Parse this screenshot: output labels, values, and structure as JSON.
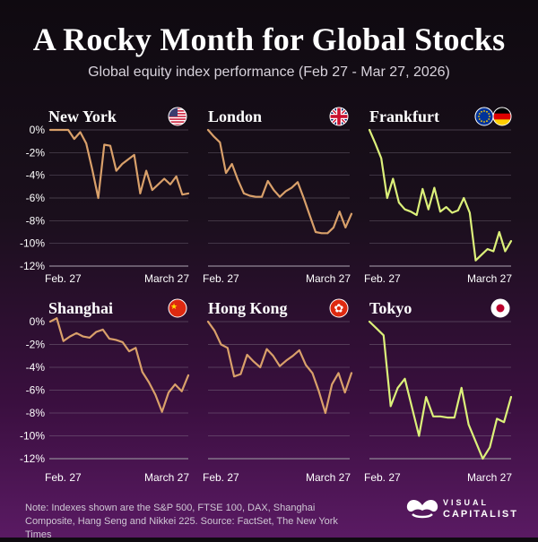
{
  "header": {
    "title": "A Rocky Month for Global Stocks",
    "subtitle": "Global equity index performance (Feb 27 - Mar 27, 2026)"
  },
  "footer": {
    "note": "Note: Indexes shown are the S&P 500, FTSE 100, DAX, Shanghai Composite, Hang Seng and Nikkei 225.  Source: FactSet, The New York Times",
    "logo_line1": "VISUAL",
    "logo_line2": "CAPITALIST"
  },
  "colors": {
    "orange": "#d9a06a",
    "lime": "#dcf07a",
    "grid": "#8a7f8f"
  },
  "chart_data": [
    {
      "type": "line",
      "title": "New York",
      "flag": "us-flag-icon",
      "color": "orange",
      "ylim": [
        -12,
        0
      ],
      "yticks": [
        "0%",
        "-2%",
        "-4%",
        "-6%",
        "-8%",
        "-10%",
        "-12%"
      ],
      "x_start_label": "Feb. 27",
      "x_end_label": "March 27",
      "values": [
        0,
        0,
        0,
        0,
        -0.8,
        -0.2,
        -1.2,
        -3.5,
        -6.0,
        -1.3,
        -1.4,
        -3.6,
        -3.0,
        -2.6,
        -2.2,
        -5.6,
        -3.6,
        -5.3,
        -4.8,
        -4.3,
        -4.8,
        -4.1,
        -5.7,
        -5.6
      ]
    },
    {
      "type": "line",
      "title": "London",
      "flag": "uk-flag-icon",
      "color": "orange",
      "ylim": [
        -12,
        0
      ],
      "yticks": [
        "0%",
        "-2%",
        "-4%",
        "-6%",
        "-8%",
        "-10%",
        "-12%"
      ],
      "x_start_label": "Feb. 27",
      "x_end_label": "March 27",
      "values": [
        0,
        -0.6,
        -1.1,
        -3.8,
        -3.0,
        -4.4,
        -5.6,
        -5.8,
        -5.9,
        -5.9,
        -4.5,
        -5.3,
        -5.9,
        -5.4,
        -5.1,
        -4.6,
        -6.0,
        -7.5,
        -9.0,
        -9.1,
        -9.1,
        -8.6,
        -7.2,
        -8.6,
        -7.4
      ]
    },
    {
      "type": "line",
      "title": "Frankfurt",
      "flag": "eu-de-flag-icon",
      "color": "lime",
      "ylim": [
        -12,
        0
      ],
      "yticks": [
        "0%",
        "-2%",
        "-4%",
        "-6%",
        "-8%",
        "-10%",
        "-12%"
      ],
      "x_start_label": "Feb. 27",
      "x_end_label": "March 27",
      "values": [
        0,
        -1.2,
        -2.5,
        -6.0,
        -4.3,
        -6.4,
        -7.0,
        -7.2,
        -7.5,
        -5.2,
        -7.0,
        -5.1,
        -7.2,
        -6.8,
        -7.3,
        -7.1,
        -6.0,
        -7.3,
        -11.5,
        -11.0,
        -10.5,
        -10.7,
        -9.0,
        -10.7,
        -9.8
      ]
    },
    {
      "type": "line",
      "title": "Shanghai",
      "flag": "china-flag-icon",
      "color": "orange",
      "ylim": [
        -12,
        0
      ],
      "yticks": [
        "0%",
        "-2%",
        "-4%",
        "-6%",
        "-8%",
        "-10%",
        "-12%"
      ],
      "x_start_label": "Feb. 27",
      "x_end_label": "March 27",
      "values": [
        0,
        0.3,
        -1.7,
        -1.3,
        -1.0,
        -1.3,
        -1.4,
        -0.9,
        -0.7,
        -1.5,
        -1.6,
        -1.8,
        -2.6,
        -2.3,
        -4.4,
        -5.3,
        -6.4,
        -7.9,
        -6.2,
        -5.5,
        -6.1,
        -4.7
      ]
    },
    {
      "type": "line",
      "title": "Hong Kong",
      "flag": "hong-kong-flag-icon",
      "color": "orange",
      "ylim": [
        -12,
        0
      ],
      "yticks": [
        "0%",
        "-2%",
        "-4%",
        "-6%",
        "-8%",
        "-10%",
        "-12%"
      ],
      "x_start_label": "Feb. 27",
      "x_end_label": "March 27",
      "values": [
        0,
        -0.8,
        -2.0,
        -2.3,
        -4.8,
        -4.6,
        -2.9,
        -3.5,
        -4.0,
        -2.4,
        -3.0,
        -3.9,
        -3.4,
        -3.0,
        -2.5,
        -3.8,
        -4.5,
        -6.1,
        -8.0,
        -5.5,
        -4.5,
        -6.2,
        -4.5
      ]
    },
    {
      "type": "line",
      "title": "Tokyo",
      "flag": "japan-flag-icon",
      "color": "lime",
      "ylim": [
        -12,
        0
      ],
      "yticks": [
        "0%",
        "-2%",
        "-4%",
        "-6%",
        "-8%",
        "-10%",
        "-12%"
      ],
      "x_start_label": "Feb. 27",
      "x_end_label": "March 27",
      "values": [
        0,
        -0.6,
        -1.2,
        -7.4,
        -5.8,
        -5.0,
        -7.5,
        -10.0,
        -6.6,
        -8.3,
        -8.3,
        -8.4,
        -8.4,
        -5.8,
        -9.0,
        -10.5,
        -12.0,
        -11.0,
        -8.5,
        -8.8,
        -6.6
      ]
    }
  ]
}
